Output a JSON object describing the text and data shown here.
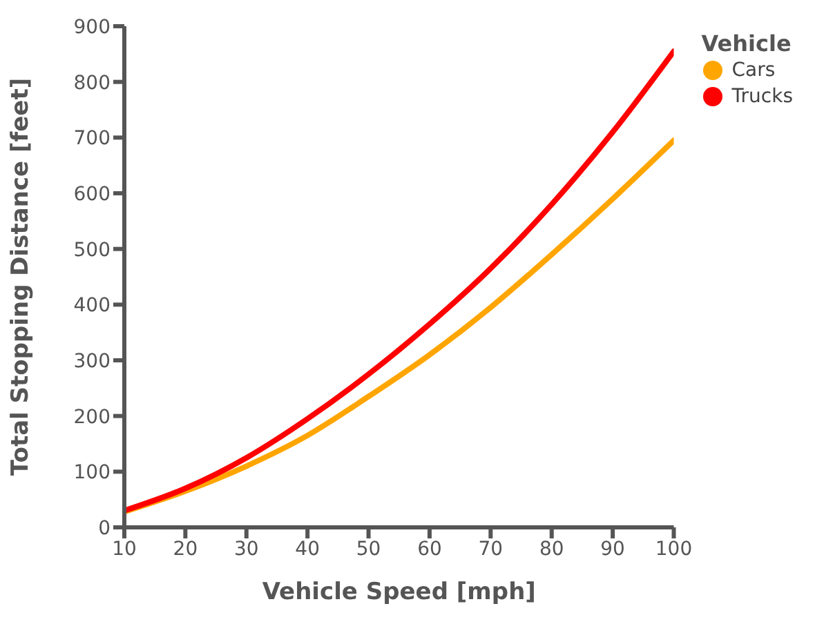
{
  "chart_data": {
    "type": "line",
    "xlabel": "Vehicle Speed [mph]",
    "ylabel": "Total Stopping Distance [feet]",
    "legend_title": "Vehicle",
    "x": [
      10,
      20,
      30,
      40,
      50,
      60,
      70,
      80,
      90,
      100
    ],
    "series": [
      {
        "name": "Cars",
        "color": "#ffa500",
        "values": [
          28,
          65,
          110,
          165,
          235,
          310,
          395,
          490,
          590,
          695
        ]
      },
      {
        "name": "Trucks",
        "color": "#ff0000",
        "values": [
          30,
          70,
          125,
          195,
          275,
          365,
          465,
          580,
          710,
          855
        ]
      }
    ],
    "xlim": [
      10,
      100
    ],
    "xticks": [
      10,
      20,
      30,
      40,
      50,
      60,
      70,
      80,
      90,
      100
    ],
    "ylim": [
      0,
      900
    ],
    "yticks": [
      0,
      100,
      200,
      300,
      400,
      500,
      600,
      700,
      800,
      900
    ],
    "legend": "top right",
    "marker": "none",
    "line_style": "solid"
  }
}
